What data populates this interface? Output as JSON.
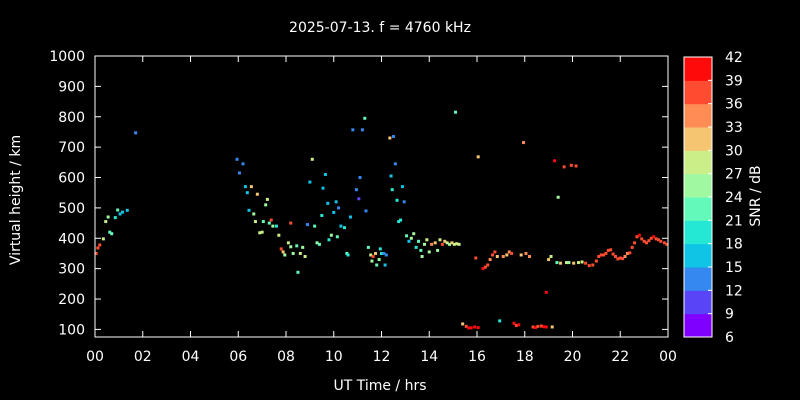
{
  "chart_data": {
    "type": "scatter",
    "title": "2025-07-13. f = 4760 kHz",
    "xlabel": "UT Time / hrs",
    "ylabel": "Virtual height / km",
    "xlim": [
      0,
      24
    ],
    "ylim": [
      75,
      1000
    ],
    "x_ticks": [
      "00",
      "02",
      "04",
      "06",
      "08",
      "10",
      "12",
      "14",
      "16",
      "18",
      "20",
      "22",
      "00"
    ],
    "x_tick_values": [
      0,
      2,
      4,
      6,
      8,
      10,
      12,
      14,
      16,
      18,
      20,
      22,
      24
    ],
    "y_ticks": [
      100,
      200,
      300,
      400,
      500,
      600,
      700,
      800,
      900,
      1000
    ],
    "grid": false,
    "colorbar": {
      "label": "SNR / dB",
      "min": 6,
      "max": 42,
      "ticks": [
        6,
        9,
        12,
        15,
        18,
        21,
        24,
        27,
        30,
        33,
        36,
        39,
        42
      ],
      "colors": [
        "#8000ff",
        "#5a44f7",
        "#3588ef",
        "#10c4e6",
        "#24e8d4",
        "#62f9bb",
        "#a0f9a0",
        "#ccee88",
        "#f5c571",
        "#ff8c55",
        "#ff4c30",
        "#ff0a0a"
      ]
    },
    "points": [
      {
        "x": 0.05,
        "y": 350,
        "snr": 37
      },
      {
        "x": 0.12,
        "y": 368,
        "snr": 37
      },
      {
        "x": 0.2,
        "y": 378,
        "snr": 37
      },
      {
        "x": 0.35,
        "y": 398,
        "snr": 28
      },
      {
        "x": 0.45,
        "y": 455,
        "snr": 27
      },
      {
        "x": 0.55,
        "y": 470,
        "snr": 26
      },
      {
        "x": 0.62,
        "y": 420,
        "snr": 22
      },
      {
        "x": 0.7,
        "y": 415,
        "snr": 21
      },
      {
        "x": 0.85,
        "y": 468,
        "snr": 19
      },
      {
        "x": 0.95,
        "y": 493,
        "snr": 22
      },
      {
        "x": 1.05,
        "y": 480,
        "snr": 16
      },
      {
        "x": 1.15,
        "y": 486,
        "snr": 15
      },
      {
        "x": 1.35,
        "y": 492,
        "snr": 17
      },
      {
        "x": 1.7,
        "y": 747,
        "snr": 14
      },
      {
        "x": 5.95,
        "y": 660,
        "snr": 12
      },
      {
        "x": 6.05,
        "y": 615,
        "snr": 13
      },
      {
        "x": 6.2,
        "y": 645,
        "snr": 12
      },
      {
        "x": 6.3,
        "y": 570,
        "snr": 17
      },
      {
        "x": 6.38,
        "y": 550,
        "snr": 16
      },
      {
        "x": 6.45,
        "y": 492,
        "snr": 17
      },
      {
        "x": 6.55,
        "y": 570,
        "snr": 30
      },
      {
        "x": 6.65,
        "y": 480,
        "snr": 24
      },
      {
        "x": 6.72,
        "y": 455,
        "snr": 28
      },
      {
        "x": 6.8,
        "y": 545,
        "snr": 31
      },
      {
        "x": 6.9,
        "y": 418,
        "snr": 28
      },
      {
        "x": 7.0,
        "y": 420,
        "snr": 28
      },
      {
        "x": 7.05,
        "y": 455,
        "snr": 22
      },
      {
        "x": 7.15,
        "y": 510,
        "snr": 26
      },
      {
        "x": 7.22,
        "y": 528,
        "snr": 27
      },
      {
        "x": 7.3,
        "y": 450,
        "snr": 22
      },
      {
        "x": 7.38,
        "y": 460,
        "snr": 38
      },
      {
        "x": 7.45,
        "y": 440,
        "snr": 25
      },
      {
        "x": 7.6,
        "y": 440,
        "snr": 20
      },
      {
        "x": 7.7,
        "y": 410,
        "snr": 28
      },
      {
        "x": 7.8,
        "y": 365,
        "snr": 36
      },
      {
        "x": 7.88,
        "y": 355,
        "snr": 30
      },
      {
        "x": 7.95,
        "y": 345,
        "snr": 24
      },
      {
        "x": 8.1,
        "y": 385,
        "snr": 27
      },
      {
        "x": 8.2,
        "y": 372,
        "snr": 25
      },
      {
        "x": 8.3,
        "y": 350,
        "snr": 26
      },
      {
        "x": 8.45,
        "y": 375,
        "snr": 23
      },
      {
        "x": 8.5,
        "y": 288,
        "snr": 22
      },
      {
        "x": 8.6,
        "y": 350,
        "snr": 27
      },
      {
        "x": 8.7,
        "y": 370,
        "snr": 26
      },
      {
        "x": 8.8,
        "y": 340,
        "snr": 28
      },
      {
        "x": 8.2,
        "y": 450,
        "snr": 37
      },
      {
        "x": 8.9,
        "y": 445,
        "snr": 13
      },
      {
        "x": 9.0,
        "y": 585,
        "snr": 16
      },
      {
        "x": 9.1,
        "y": 660,
        "snr": 29
      },
      {
        "x": 9.2,
        "y": 440,
        "snr": 23
      },
      {
        "x": 9.3,
        "y": 385,
        "snr": 24
      },
      {
        "x": 9.4,
        "y": 380,
        "snr": 22
      },
      {
        "x": 9.5,
        "y": 475,
        "snr": 18
      },
      {
        "x": 9.55,
        "y": 565,
        "snr": 15
      },
      {
        "x": 9.65,
        "y": 610,
        "snr": 16
      },
      {
        "x": 9.75,
        "y": 515,
        "snr": 16
      },
      {
        "x": 9.8,
        "y": 395,
        "snr": 20
      },
      {
        "x": 9.9,
        "y": 410,
        "snr": 24
      },
      {
        "x": 10.0,
        "y": 485,
        "snr": 17
      },
      {
        "x": 10.1,
        "y": 520,
        "snr": 15
      },
      {
        "x": 10.15,
        "y": 405,
        "snr": 21
      },
      {
        "x": 10.2,
        "y": 500,
        "snr": 14
      },
      {
        "x": 10.3,
        "y": 440,
        "snr": 16
      },
      {
        "x": 10.45,
        "y": 435,
        "snr": 18
      },
      {
        "x": 10.55,
        "y": 350,
        "snr": 22
      },
      {
        "x": 10.6,
        "y": 345,
        "snr": 19
      },
      {
        "x": 10.7,
        "y": 470,
        "snr": 16
      },
      {
        "x": 10.8,
        "y": 757,
        "snr": 13
      },
      {
        "x": 10.95,
        "y": 560,
        "snr": 12
      },
      {
        "x": 11.05,
        "y": 530,
        "snr": 11
      },
      {
        "x": 11.1,
        "y": 600,
        "snr": 12
      },
      {
        "x": 11.2,
        "y": 757,
        "snr": 14
      },
      {
        "x": 11.3,
        "y": 795,
        "snr": 22
      },
      {
        "x": 11.35,
        "y": 490,
        "snr": 12
      },
      {
        "x": 11.45,
        "y": 370,
        "snr": 22
      },
      {
        "x": 11.55,
        "y": 345,
        "snr": 28
      },
      {
        "x": 11.6,
        "y": 325,
        "snr": 26
      },
      {
        "x": 11.65,
        "y": 340,
        "snr": 37
      },
      {
        "x": 11.75,
        "y": 350,
        "snr": 30
      },
      {
        "x": 11.8,
        "y": 312,
        "snr": 23
      },
      {
        "x": 11.9,
        "y": 330,
        "snr": 24
      },
      {
        "x": 11.95,
        "y": 365,
        "snr": 18
      },
      {
        "x": 12.0,
        "y": 350,
        "snr": 20
      },
      {
        "x": 12.1,
        "y": 350,
        "snr": 13
      },
      {
        "x": 12.15,
        "y": 312,
        "snr": 16
      },
      {
        "x": 12.2,
        "y": 345,
        "snr": 12
      },
      {
        "x": 12.35,
        "y": 730,
        "snr": 32
      },
      {
        "x": 12.4,
        "y": 605,
        "snr": 15
      },
      {
        "x": 12.45,
        "y": 560,
        "snr": 18
      },
      {
        "x": 12.5,
        "y": 735,
        "snr": 12
      },
      {
        "x": 12.58,
        "y": 645,
        "snr": 14
      },
      {
        "x": 12.65,
        "y": 525,
        "snr": 19
      },
      {
        "x": 12.72,
        "y": 455,
        "snr": 18
      },
      {
        "x": 12.8,
        "y": 460,
        "snr": 20
      },
      {
        "x": 12.88,
        "y": 570,
        "snr": 16
      },
      {
        "x": 12.95,
        "y": 520,
        "snr": 14
      },
      {
        "x": 13.05,
        "y": 408,
        "snr": 23
      },
      {
        "x": 13.15,
        "y": 390,
        "snr": 15
      },
      {
        "x": 13.25,
        "y": 400,
        "snr": 26
      },
      {
        "x": 13.35,
        "y": 415,
        "snr": 24
      },
      {
        "x": 13.45,
        "y": 370,
        "snr": 20
      },
      {
        "x": 13.55,
        "y": 390,
        "snr": 22
      },
      {
        "x": 13.65,
        "y": 360,
        "snr": 23
      },
      {
        "x": 13.7,
        "y": 340,
        "snr": 24
      },
      {
        "x": 13.8,
        "y": 380,
        "snr": 26
      },
      {
        "x": 13.9,
        "y": 395,
        "snr": 27
      },
      {
        "x": 14.0,
        "y": 355,
        "snr": 24
      },
      {
        "x": 14.1,
        "y": 380,
        "snr": 33
      },
      {
        "x": 14.25,
        "y": 385,
        "snr": 31
      },
      {
        "x": 14.35,
        "y": 360,
        "snr": 25
      },
      {
        "x": 14.45,
        "y": 395,
        "snr": 28
      },
      {
        "x": 14.55,
        "y": 380,
        "snr": 36
      },
      {
        "x": 14.65,
        "y": 390,
        "snr": 32
      },
      {
        "x": 14.75,
        "y": 385,
        "snr": 28
      },
      {
        "x": 14.85,
        "y": 380,
        "snr": 26
      },
      {
        "x": 14.95,
        "y": 385,
        "snr": 30
      },
      {
        "x": 15.05,
        "y": 380,
        "snr": 29
      },
      {
        "x": 15.15,
        "y": 382,
        "snr": 27
      },
      {
        "x": 15.25,
        "y": 380,
        "snr": 28
      },
      {
        "x": 15.1,
        "y": 815,
        "snr": 22
      },
      {
        "x": 15.4,
        "y": 118,
        "snr": 30
      },
      {
        "x": 15.55,
        "y": 110,
        "snr": 38
      },
      {
        "x": 15.65,
        "y": 105,
        "snr": 40
      },
      {
        "x": 15.75,
        "y": 105,
        "snr": 41
      },
      {
        "x": 15.9,
        "y": 108,
        "snr": 40
      },
      {
        "x": 16.05,
        "y": 106,
        "snr": 40
      },
      {
        "x": 15.95,
        "y": 335,
        "snr": 37
      },
      {
        "x": 16.05,
        "y": 668,
        "snr": 32
      },
      {
        "x": 16.25,
        "y": 300,
        "snr": 39
      },
      {
        "x": 16.35,
        "y": 305,
        "snr": 38
      },
      {
        "x": 16.45,
        "y": 312,
        "snr": 37
      },
      {
        "x": 16.55,
        "y": 330,
        "snr": 35
      },
      {
        "x": 16.65,
        "y": 345,
        "snr": 37
      },
      {
        "x": 16.75,
        "y": 355,
        "snr": 38
      },
      {
        "x": 16.85,
        "y": 340,
        "snr": 30
      },
      {
        "x": 16.95,
        "y": 128,
        "snr": 20
      },
      {
        "x": 17.1,
        "y": 340,
        "snr": 33
      },
      {
        "x": 17.25,
        "y": 345,
        "snr": 31
      },
      {
        "x": 17.35,
        "y": 355,
        "snr": 35
      },
      {
        "x": 17.45,
        "y": 350,
        "snr": 36
      },
      {
        "x": 17.55,
        "y": 120,
        "snr": 39
      },
      {
        "x": 17.65,
        "y": 113,
        "snr": 38
      },
      {
        "x": 17.75,
        "y": 115,
        "snr": 39
      },
      {
        "x": 17.85,
        "y": 345,
        "snr": 31
      },
      {
        "x": 17.95,
        "y": 715,
        "snr": 34
      },
      {
        "x": 18.05,
        "y": 350,
        "snr": 33
      },
      {
        "x": 18.2,
        "y": 340,
        "snr": 35
      },
      {
        "x": 18.35,
        "y": 108,
        "snr": 37
      },
      {
        "x": 18.45,
        "y": 106,
        "snr": 39
      },
      {
        "x": 18.55,
        "y": 110,
        "snr": 36
      },
      {
        "x": 18.7,
        "y": 111,
        "snr": 38
      },
      {
        "x": 18.8,
        "y": 109,
        "snr": 39
      },
      {
        "x": 18.9,
        "y": 108,
        "snr": 40
      },
      {
        "x": 19.15,
        "y": 108,
        "snr": 30
      },
      {
        "x": 18.9,
        "y": 222,
        "snr": 40
      },
      {
        "x": 19.0,
        "y": 330,
        "snr": 30
      },
      {
        "x": 19.1,
        "y": 340,
        "snr": 27
      },
      {
        "x": 19.25,
        "y": 655,
        "snr": 40
      },
      {
        "x": 19.35,
        "y": 320,
        "snr": 22
      },
      {
        "x": 19.4,
        "y": 535,
        "snr": 24
      },
      {
        "x": 19.5,
        "y": 318,
        "snr": 30
      },
      {
        "x": 19.65,
        "y": 635,
        "snr": 37
      },
      {
        "x": 19.75,
        "y": 320,
        "snr": 27
      },
      {
        "x": 19.85,
        "y": 320,
        "snr": 26
      },
      {
        "x": 19.95,
        "y": 640,
        "snr": 38
      },
      {
        "x": 20.05,
        "y": 318,
        "snr": 32
      },
      {
        "x": 20.15,
        "y": 638,
        "snr": 37
      },
      {
        "x": 20.25,
        "y": 320,
        "snr": 29
      },
      {
        "x": 20.4,
        "y": 322,
        "snr": 28
      },
      {
        "x": 20.55,
        "y": 318,
        "snr": 36
      },
      {
        "x": 20.7,
        "y": 310,
        "snr": 37
      },
      {
        "x": 20.85,
        "y": 312,
        "snr": 38
      },
      {
        "x": 21.0,
        "y": 325,
        "snr": 37
      },
      {
        "x": 21.1,
        "y": 340,
        "snr": 37
      },
      {
        "x": 21.2,
        "y": 345,
        "snr": 36
      },
      {
        "x": 21.3,
        "y": 345,
        "snr": 38
      },
      {
        "x": 21.4,
        "y": 350,
        "snr": 36
      },
      {
        "x": 21.5,
        "y": 360,
        "snr": 37
      },
      {
        "x": 21.6,
        "y": 362,
        "snr": 38
      },
      {
        "x": 21.7,
        "y": 348,
        "snr": 37
      },
      {
        "x": 21.8,
        "y": 340,
        "snr": 38
      },
      {
        "x": 21.9,
        "y": 332,
        "snr": 37
      },
      {
        "x": 22.0,
        "y": 335,
        "snr": 38
      },
      {
        "x": 22.1,
        "y": 333,
        "snr": 37
      },
      {
        "x": 22.2,
        "y": 340,
        "snr": 34
      },
      {
        "x": 22.3,
        "y": 350,
        "snr": 35
      },
      {
        "x": 22.4,
        "y": 352,
        "snr": 36
      },
      {
        "x": 22.5,
        "y": 370,
        "snr": 37
      },
      {
        "x": 22.6,
        "y": 385,
        "snr": 36
      },
      {
        "x": 22.7,
        "y": 405,
        "snr": 37
      },
      {
        "x": 22.8,
        "y": 410,
        "snr": 40
      },
      {
        "x": 22.9,
        "y": 398,
        "snr": 38
      },
      {
        "x": 23.0,
        "y": 390,
        "snr": 37
      },
      {
        "x": 23.1,
        "y": 385,
        "snr": 38
      },
      {
        "x": 23.2,
        "y": 392,
        "snr": 37
      },
      {
        "x": 23.3,
        "y": 400,
        "snr": 38
      },
      {
        "x": 23.4,
        "y": 405,
        "snr": 40
      },
      {
        "x": 23.5,
        "y": 398,
        "snr": 37
      },
      {
        "x": 23.6,
        "y": 395,
        "snr": 38
      },
      {
        "x": 23.7,
        "y": 390,
        "snr": 36
      },
      {
        "x": 23.85,
        "y": 385,
        "snr": 37
      },
      {
        "x": 23.95,
        "y": 380,
        "snr": 38
      }
    ]
  }
}
